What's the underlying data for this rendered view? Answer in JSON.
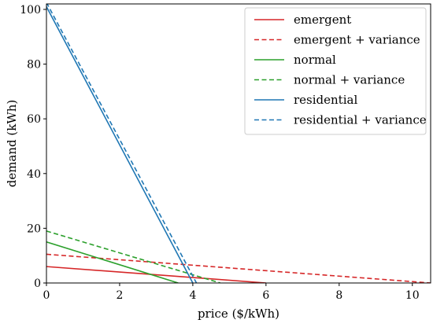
{
  "chart_data": {
    "type": "line",
    "xlabel": "price ($/kWh)",
    "ylabel": "demand (kWh)",
    "xlim": [
      0,
      10.5
    ],
    "ylim": [
      0,
      102
    ],
    "x_ticks": [
      0,
      2,
      4,
      6,
      8,
      10
    ],
    "y_ticks": [
      0,
      20,
      40,
      60,
      80,
      100
    ],
    "grid": false,
    "legend_position": "top-right",
    "series": [
      {
        "name": "emergent",
        "style": "solid",
        "color": "#d62728",
        "x": [
          0,
          6
        ],
        "y": [
          6,
          0
        ]
      },
      {
        "name": "emergent + variance",
        "style": "dashed",
        "color": "#d62728",
        "x": [
          0,
          10.5
        ],
        "y": [
          10.5,
          0
        ]
      },
      {
        "name": "normal",
        "style": "solid",
        "color": "#2ca02c",
        "x": [
          0,
          3.6
        ],
        "y": [
          15,
          0
        ]
      },
      {
        "name": "normal + variance",
        "style": "dashed",
        "color": "#2ca02c",
        "x": [
          0,
          4.75
        ],
        "y": [
          19,
          0
        ]
      },
      {
        "name": "residential",
        "style": "solid",
        "color": "#1f77b4",
        "x": [
          0,
          4
        ],
        "y": [
          101,
          0
        ]
      },
      {
        "name": "residential + variance",
        "style": "dashed",
        "color": "#1f77b4",
        "x": [
          0,
          4.1
        ],
        "y": [
          102.5,
          0
        ]
      }
    ]
  }
}
